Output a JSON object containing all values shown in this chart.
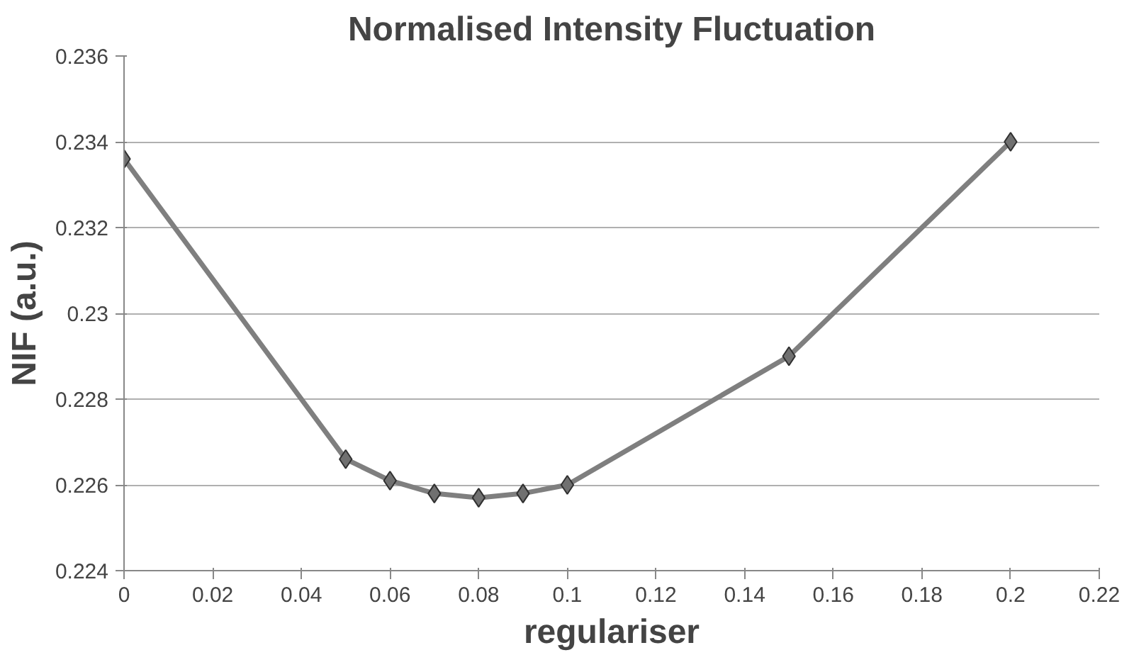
{
  "chart_data": {
    "type": "line",
    "title": "Normalised Intensity Fluctuation",
    "xlabel": "regulariser",
    "ylabel": "NIF (a.u.)",
    "x": [
      0,
      0.05,
      0.06,
      0.07,
      0.08,
      0.09,
      0.1,
      0.15,
      0.2
    ],
    "series": [
      {
        "color": "#7f7f7f",
        "values": [
          0.2336,
          0.2266,
          0.2261,
          0.2258,
          0.2257,
          0.2258,
          0.226,
          0.229,
          0.234
        ]
      }
    ],
    "xlim": [
      0,
      0.22
    ],
    "xticks": [
      0,
      0.02,
      0.04,
      0.06,
      0.08,
      0.1,
      0.12,
      0.14,
      0.16,
      0.18,
      0.2,
      0.22
    ],
    "ylim": [
      0.224,
      0.236
    ],
    "yticks": [
      0.224,
      0.226,
      0.228,
      0.23,
      0.232,
      0.234,
      0.236
    ],
    "grid": "y",
    "marker": "diamond",
    "line_style": "solid"
  }
}
